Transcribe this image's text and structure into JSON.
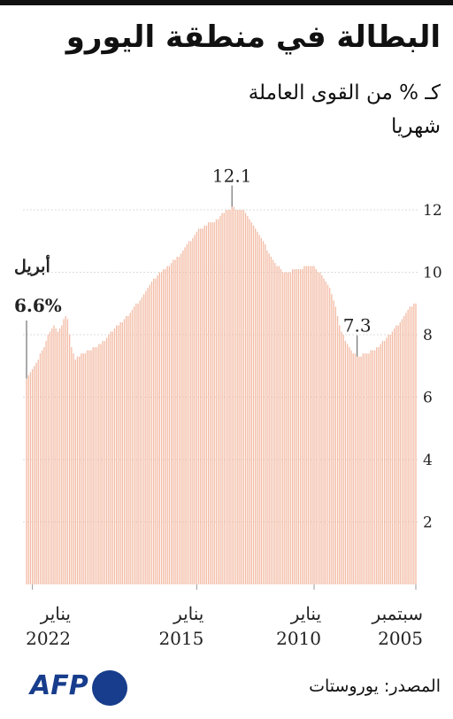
{
  "header": {
    "title": "البطالة في منطقة اليورو",
    "subtitle": "كـ % من القوى العاملة",
    "frequency": "شهريا"
  },
  "chart_data": {
    "type": "bar",
    "color": "#f3bba4",
    "x": [
      "2005-09",
      "2005-10",
      "2005-11",
      "2005-12",
      "2006-01",
      "2006-02",
      "2006-03",
      "2006-04",
      "2006-05",
      "2006-06",
      "2006-07",
      "2006-08",
      "2006-09",
      "2006-10",
      "2006-11",
      "2006-12",
      "2007-01",
      "2007-02",
      "2007-03",
      "2007-04",
      "2007-05",
      "2007-06",
      "2007-07",
      "2007-08",
      "2007-09",
      "2007-10",
      "2007-11",
      "2007-12",
      "2008-01",
      "2008-02",
      "2008-03",
      "2008-04",
      "2008-05",
      "2008-06",
      "2008-07",
      "2008-08",
      "2008-09",
      "2008-10",
      "2008-11",
      "2008-12",
      "2009-01",
      "2009-02",
      "2009-03",
      "2009-04",
      "2009-05",
      "2009-06",
      "2009-07",
      "2009-08",
      "2009-09",
      "2009-10",
      "2009-11",
      "2009-12",
      "2010-01",
      "2010-02",
      "2010-03",
      "2010-04",
      "2010-05",
      "2010-06",
      "2010-07",
      "2010-08",
      "2010-09",
      "2010-10",
      "2010-11",
      "2010-12",
      "2011-01",
      "2011-02",
      "2011-03",
      "2011-04",
      "2011-05",
      "2011-06",
      "2011-07",
      "2011-08",
      "2011-09",
      "2011-10",
      "2011-11",
      "2011-12",
      "2012-01",
      "2012-02",
      "2012-03",
      "2012-04",
      "2012-05",
      "2012-06",
      "2012-07",
      "2012-08",
      "2012-09",
      "2012-10",
      "2012-11",
      "2012-12",
      "2013-01",
      "2013-02",
      "2013-03",
      "2013-04",
      "2013-05",
      "2013-06",
      "2013-07",
      "2013-08",
      "2013-09",
      "2013-10",
      "2013-11",
      "2013-12",
      "2014-01",
      "2014-02",
      "2014-03",
      "2014-04",
      "2014-05",
      "2014-06",
      "2014-07",
      "2014-08",
      "2014-09",
      "2014-10",
      "2014-11",
      "2014-12",
      "2015-01",
      "2015-02",
      "2015-03",
      "2015-04",
      "2015-05",
      "2015-06",
      "2015-07",
      "2015-08",
      "2015-09",
      "2015-10",
      "2015-11",
      "2015-12",
      "2016-01",
      "2016-02",
      "2016-03",
      "2016-04",
      "2016-05",
      "2016-06",
      "2016-07",
      "2016-08",
      "2016-09",
      "2016-10",
      "2016-11",
      "2016-12",
      "2017-01",
      "2017-02",
      "2017-03",
      "2017-04",
      "2017-05",
      "2017-06",
      "2017-07",
      "2017-08",
      "2017-09",
      "2017-10",
      "2017-11",
      "2017-12",
      "2018-01",
      "2018-02",
      "2018-03",
      "2018-04",
      "2018-05",
      "2018-06",
      "2018-07",
      "2018-08",
      "2018-09",
      "2018-10",
      "2018-11",
      "2018-12",
      "2019-01",
      "2019-02",
      "2019-03",
      "2019-04",
      "2019-05",
      "2019-06",
      "2019-07",
      "2019-08",
      "2019-09",
      "2019-10",
      "2019-11",
      "2019-12",
      "2020-01",
      "2020-02",
      "2020-03",
      "2020-04",
      "2020-05",
      "2020-06",
      "2020-07",
      "2020-08",
      "2020-09",
      "2020-10",
      "2020-11",
      "2020-12",
      "2021-01",
      "2021-02",
      "2021-03",
      "2021-04",
      "2021-05",
      "2021-06",
      "2021-07",
      "2021-08",
      "2021-09",
      "2021-10",
      "2021-11",
      "2021-12",
      "2022-01",
      "2022-02",
      "2022-03",
      "2022-04"
    ],
    "values": [
      9.0,
      9.0,
      8.9,
      8.9,
      8.8,
      8.7,
      8.6,
      8.5,
      8.4,
      8.3,
      8.3,
      8.2,
      8.1,
      8.0,
      8.0,
      7.9,
      7.8,
      7.8,
      7.7,
      7.6,
      7.6,
      7.5,
      7.5,
      7.5,
      7.4,
      7.4,
      7.4,
      7.4,
      7.3,
      7.3,
      7.3,
      7.4,
      7.4,
      7.5,
      7.6,
      7.7,
      7.8,
      8.0,
      8.1,
      8.3,
      8.6,
      8.9,
      9.1,
      9.3,
      9.5,
      9.6,
      9.7,
      9.8,
      9.9,
      10.0,
      10.0,
      10.1,
      10.2,
      10.2,
      10.2,
      10.2,
      10.2,
      10.2,
      10.1,
      10.1,
      10.1,
      10.1,
      10.1,
      10.1,
      10.0,
      10.0,
      10.0,
      10.0,
      10.0,
      10.1,
      10.2,
      10.2,
      10.3,
      10.4,
      10.5,
      10.6,
      10.7,
      10.9,
      11.0,
      11.1,
      11.2,
      11.3,
      11.4,
      11.5,
      11.6,
      11.7,
      11.8,
      11.9,
      12.0,
      12.0,
      12.0,
      12.0,
      12.0,
      12.1,
      12.1,
      12.0,
      12.0,
      12.0,
      11.9,
      11.9,
      11.8,
      11.7,
      11.7,
      11.6,
      11.6,
      11.6,
      11.6,
      11.5,
      11.5,
      11.4,
      11.4,
      11.4,
      11.3,
      11.2,
      11.1,
      11.0,
      11.0,
      10.9,
      10.8,
      10.7,
      10.6,
      10.5,
      10.5,
      10.4,
      10.4,
      10.3,
      10.2,
      10.2,
      10.1,
      10.1,
      10.0,
      10.0,
      9.9,
      9.8,
      9.8,
      9.7,
      9.6,
      9.5,
      9.4,
      9.3,
      9.2,
      9.1,
      9.0,
      9.0,
      8.9,
      8.8,
      8.7,
      8.6,
      8.6,
      8.5,
      8.4,
      8.4,
      8.3,
      8.3,
      8.2,
      8.1,
      8.1,
      8.0,
      7.9,
      7.8,
      7.8,
      7.7,
      7.7,
      7.6,
      7.6,
      7.6,
      7.5,
      7.5,
      7.5,
      7.4,
      7.4,
      7.4,
      7.3,
      7.3,
      7.2,
      7.4,
      7.6,
      8.0,
      8.5,
      8.6,
      8.5,
      8.3,
      8.2,
      8.1,
      8.2,
      8.3,
      8.2,
      8.1,
      8.0,
      7.8,
      7.6,
      7.5,
      7.4,
      7.2,
      7.1,
      7.0,
      6.9,
      6.8,
      6.7,
      6.6
    ],
    "ylim": [
      0,
      12.2
    ],
    "yticks": [
      2,
      4,
      6,
      8,
      10,
      12
    ],
    "grid": true,
    "xticks": [
      {
        "value": "2005-09",
        "label": "سبتمبر 2005"
      },
      {
        "value": "2010-01",
        "label": "يناير 2010"
      },
      {
        "value": "2015-01",
        "label": "يناير 2015"
      },
      {
        "value": "2022-01",
        "label": "يناير 2022"
      }
    ],
    "annotations": [
      {
        "x": "2013-07",
        "value": 12.1,
        "label": "12.1"
      },
      {
        "x": "2008-03",
        "value": 7.3,
        "label": "7.3"
      },
      {
        "x": "2022-04",
        "value": 6.6,
        "label": "6.6%",
        "month": "أبريل"
      }
    ]
  },
  "footer": {
    "logo": "AFP",
    "source": "المصدر: يوروستات"
  }
}
